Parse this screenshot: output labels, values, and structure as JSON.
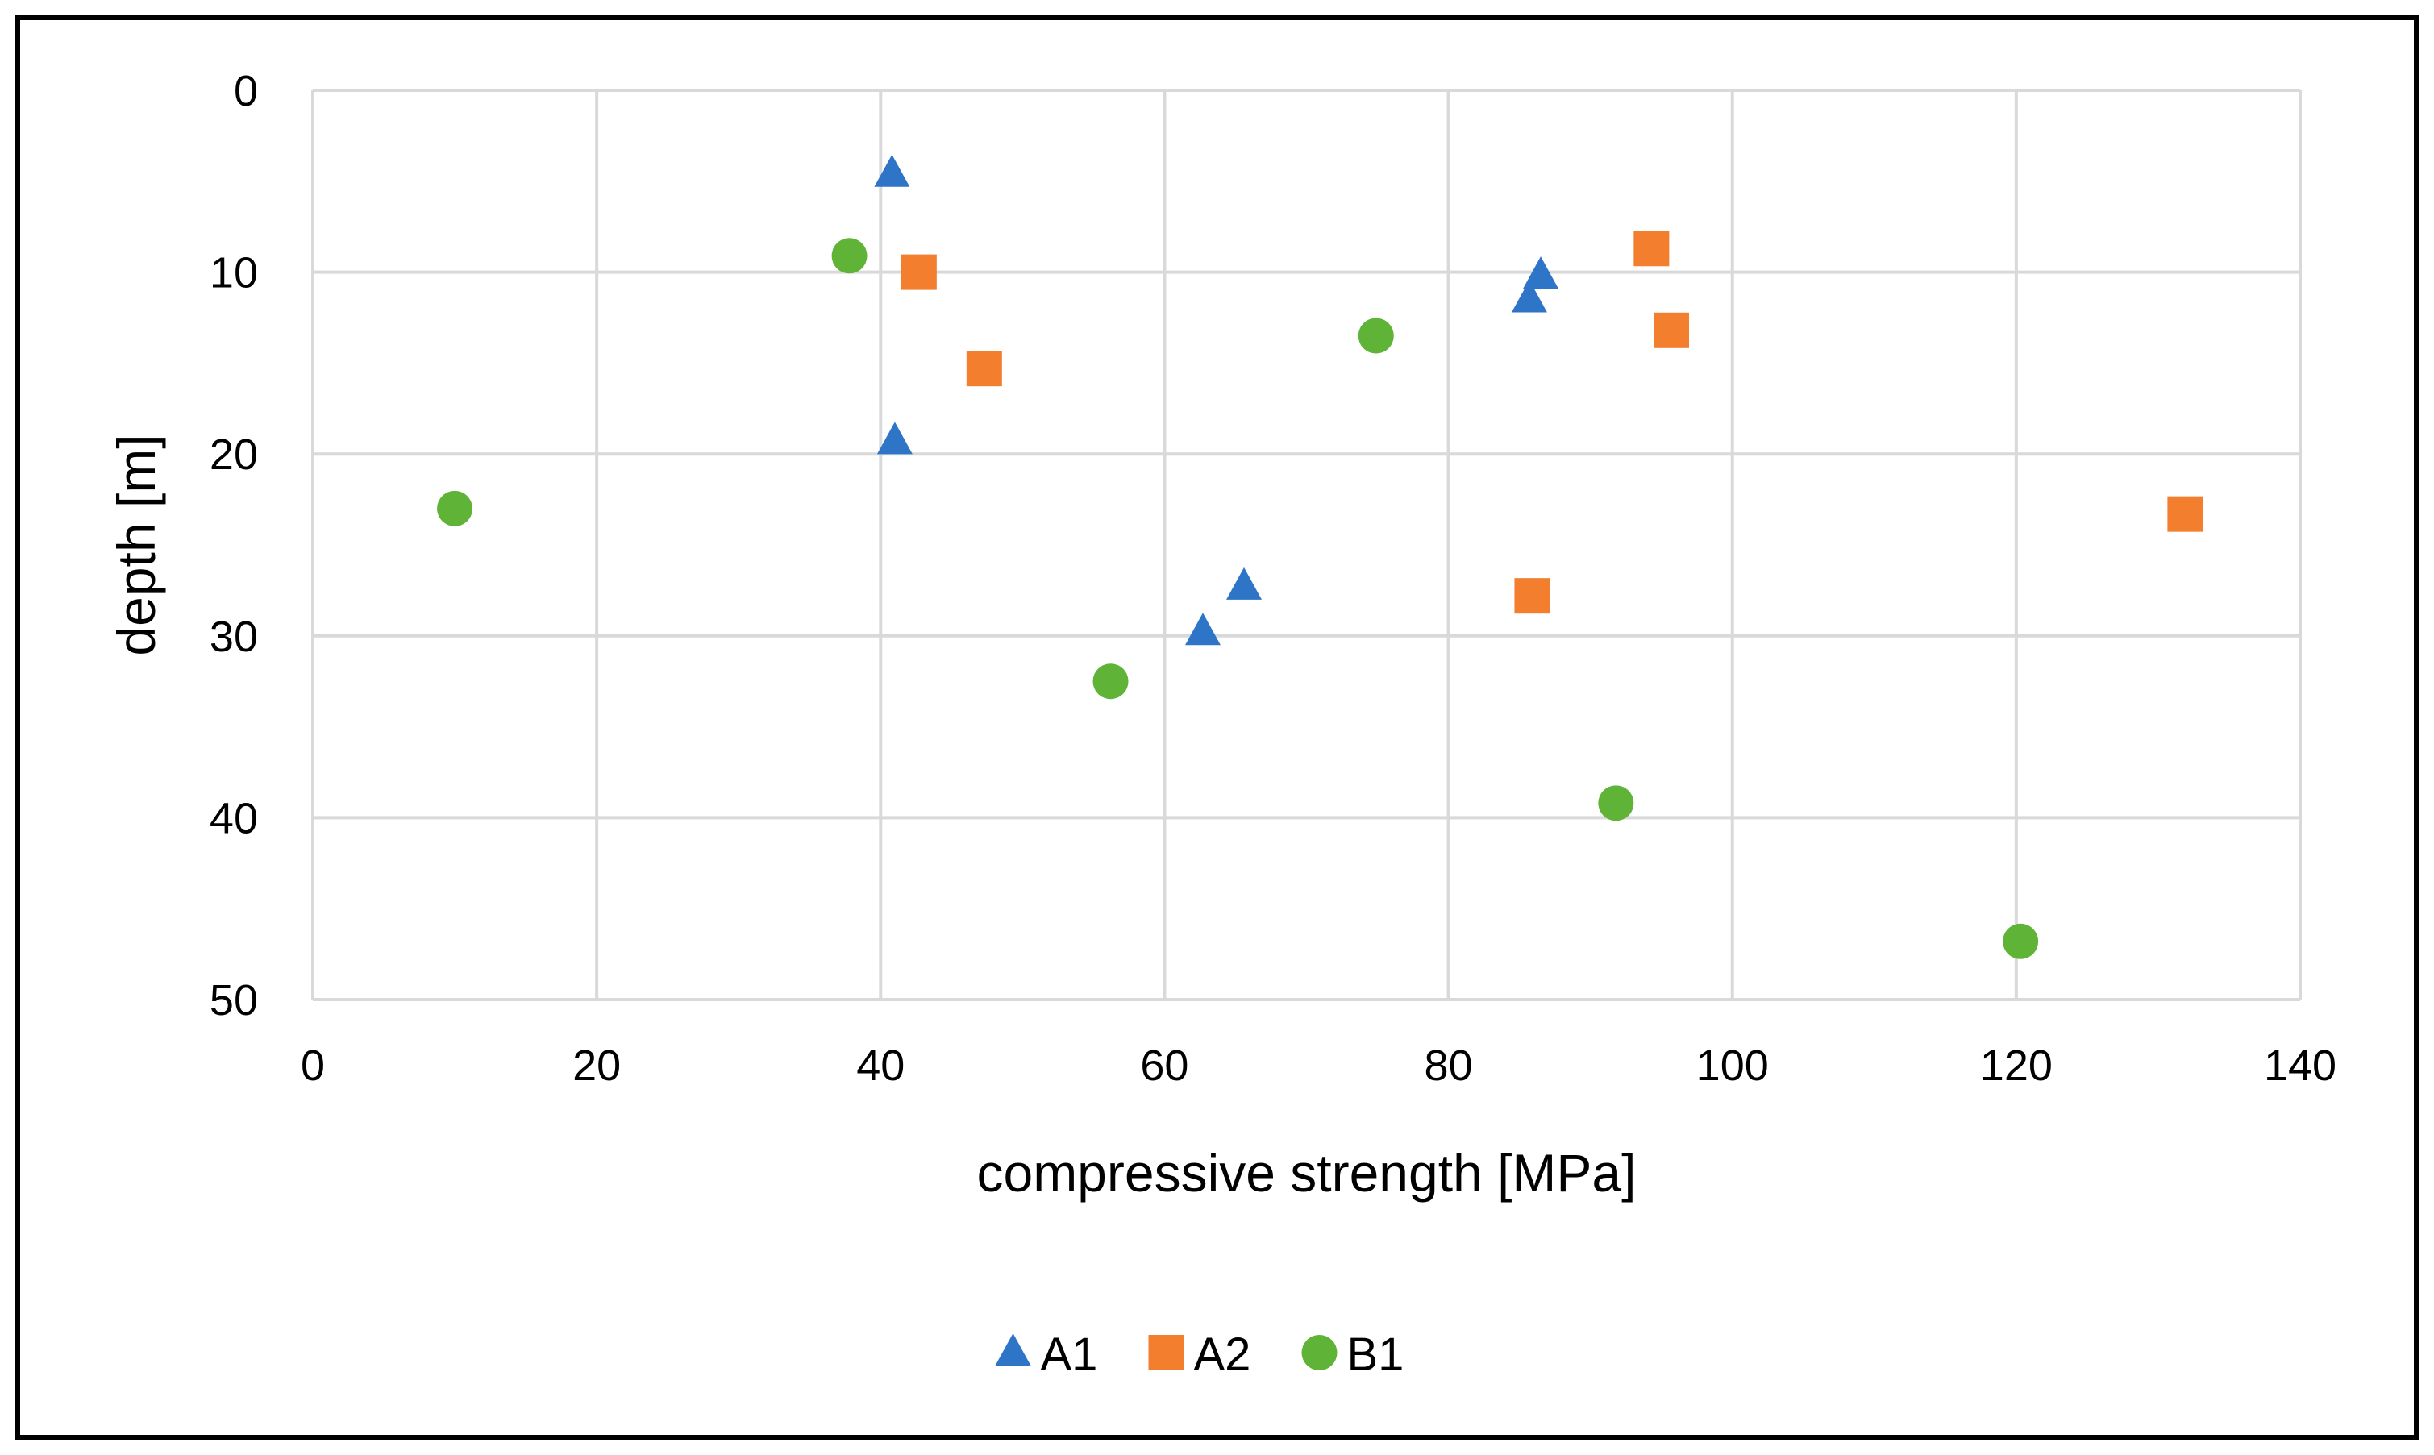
{
  "chart_data": {
    "type": "scatter",
    "title": "",
    "xlabel": "compressive strength [MPa]",
    "ylabel": "depth [m]",
    "xlim": [
      0,
      140
    ],
    "ylim": [
      0,
      50
    ],
    "y_inverted": true,
    "x_ticks": [
      0,
      20,
      40,
      60,
      80,
      100,
      120,
      140
    ],
    "y_ticks": [
      0,
      10,
      20,
      30,
      40,
      50
    ],
    "grid": true,
    "legend_position": "bottom",
    "series": [
      {
        "name": "A1",
        "marker": "triangle",
        "color": "#2e75c8",
        "points": [
          {
            "x": 40.8,
            "y": 4.6
          },
          {
            "x": 41.0,
            "y": 19.3
          },
          {
            "x": 86.5,
            "y": 10.2
          },
          {
            "x": 85.7,
            "y": 11.5
          },
          {
            "x": 65.6,
            "y": 27.3
          },
          {
            "x": 62.7,
            "y": 29.8
          }
        ]
      },
      {
        "name": "A2",
        "marker": "square",
        "color": "#f27e2e",
        "points": [
          {
            "x": 42.7,
            "y": 10.0
          },
          {
            "x": 47.3,
            "y": 15.3
          },
          {
            "x": 94.3,
            "y": 8.7
          },
          {
            "x": 95.7,
            "y": 13.2
          },
          {
            "x": 85.9,
            "y": 27.8
          },
          {
            "x": 131.9,
            "y": 23.3
          }
        ]
      },
      {
        "name": "B1",
        "marker": "circle",
        "color": "#5fb336",
        "points": [
          {
            "x": 37.8,
            "y": 9.1
          },
          {
            "x": 10.0,
            "y": 23.0
          },
          {
            "x": 74.9,
            "y": 13.5
          },
          {
            "x": 56.2,
            "y": 32.5
          },
          {
            "x": 91.8,
            "y": 39.2
          },
          {
            "x": 120.3,
            "y": 46.8
          }
        ]
      }
    ]
  }
}
